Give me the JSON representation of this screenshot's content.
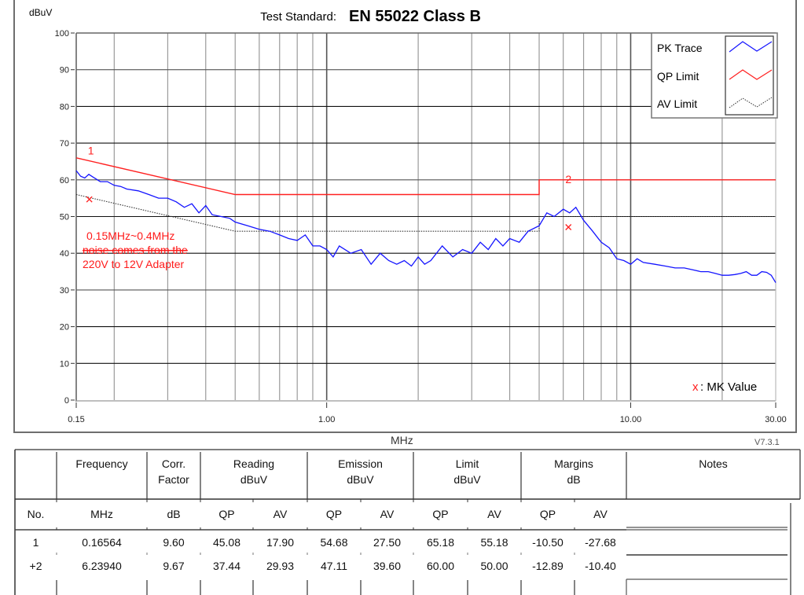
{
  "header": {
    "y_unit": "dBuV",
    "title_prefix": "Test Standard:",
    "title_standard": "EN 55022 Class B"
  },
  "legend": {
    "items": [
      {
        "label": "PK Trace",
        "color": "#1414ff",
        "style": "solid"
      },
      {
        "label": "QP Limit",
        "color": "#ff2020",
        "style": "solid"
      },
      {
        "label": "AV Limit",
        "color": "#333333",
        "style": "dotted"
      }
    ],
    "marker_note_symbol": "x",
    "marker_note_text": ": MK Value"
  },
  "annotation": {
    "lines": [
      "0.15MHz~0.4MHz",
      "noise comes from the",
      "220V to 12V Adapter"
    ],
    "color": "#ff1a1a"
  },
  "footer": {
    "x_unit": "MHz",
    "version": "V7.3.1"
  },
  "chart_data": {
    "type": "line",
    "title": "Test Standard: EN 55022 Class B",
    "xlabel": "MHz",
    "ylabel": "dBuV",
    "xscale": "log",
    "xlim": [
      0.15,
      30
    ],
    "ylim": [
      0,
      100
    ],
    "x_ticks": [
      0.15,
      1.0,
      10.0,
      30.0
    ],
    "x_tick_labels": [
      "0.15",
      "1.00",
      "10.00",
      "30.00"
    ],
    "y_ticks": [
      0,
      10,
      20,
      30,
      40,
      50,
      60,
      70,
      80,
      90,
      100
    ],
    "grid": true,
    "legend_position": "top-right",
    "series": [
      {
        "name": "PK Trace",
        "color": "#1414ff",
        "x": [
          0.15,
          0.155,
          0.16,
          0.165,
          0.17,
          0.18,
          0.19,
          0.2,
          0.21,
          0.22,
          0.24,
          0.26,
          0.28,
          0.3,
          0.32,
          0.34,
          0.36,
          0.38,
          0.4,
          0.42,
          0.45,
          0.48,
          0.5,
          0.55,
          0.6,
          0.65,
          0.7,
          0.75,
          0.8,
          0.85,
          0.9,
          0.95,
          1.0,
          1.05,
          1.1,
          1.2,
          1.3,
          1.4,
          1.5,
          1.6,
          1.7,
          1.8,
          1.9,
          2.0,
          2.1,
          2.2,
          2.4,
          2.6,
          2.8,
          3.0,
          3.2,
          3.4,
          3.6,
          3.8,
          4.0,
          4.3,
          4.6,
          5.0,
          5.3,
          5.6,
          6.0,
          6.3,
          6.6,
          7.0,
          7.5,
          8.0,
          8.5,
          9.0,
          9.5,
          10.0,
          10.5,
          11,
          12,
          13,
          14,
          15,
          16,
          17,
          18,
          19,
          20,
          21,
          22,
          23,
          24,
          25,
          26,
          27,
          28,
          29,
          30
        ],
        "values": [
          62.5,
          61,
          60.5,
          61.5,
          60.8,
          59.5,
          59.5,
          58.5,
          58.2,
          57.5,
          57,
          56,
          55,
          55,
          54,
          52.5,
          53.5,
          51,
          53,
          50.5,
          50,
          49.5,
          48.5,
          47.5,
          46.5,
          46,
          45,
          44,
          43.5,
          45,
          42,
          42,
          41,
          39,
          42,
          40,
          41,
          37,
          40,
          38,
          37,
          38,
          36.5,
          39,
          37,
          38,
          42,
          39,
          41,
          40,
          43,
          41,
          44,
          42,
          44,
          43,
          46,
          47.5,
          51,
          50,
          52,
          51,
          52.5,
          49,
          46,
          43,
          41.5,
          38.5,
          38,
          37,
          38.5,
          37.5,
          37,
          36.5,
          36,
          36,
          35.5,
          35,
          35,
          34.5,
          34,
          34,
          34.2,
          34.5,
          35,
          34,
          34,
          35,
          34.8,
          34,
          32
        ]
      },
      {
        "name": "QP Limit",
        "color": "#ff2020",
        "x": [
          0.15,
          0.5,
          0.5,
          5.0,
          5.0,
          30.0
        ],
        "values": [
          66,
          56,
          56,
          56,
          60,
          60
        ]
      },
      {
        "name": "AV Limit",
        "color": "#333333",
        "x": [
          0.15,
          0.5,
          0.5,
          5.0,
          5.0,
          30.0
        ],
        "values": [
          56,
          46,
          46,
          46,
          50,
          50
        ]
      }
    ],
    "markers": [
      {
        "id": "1",
        "freq_mhz": 0.16564,
        "qp_level": 54.68,
        "av_level": 27.5,
        "label_y": 66.5
      },
      {
        "id": "2",
        "freq_mhz": 6.2394,
        "qp_level": 47.11,
        "av_level": 39.6,
        "label_y": 60
      }
    ]
  },
  "table": {
    "group_headers": [
      {
        "label": "",
        "sub": ""
      },
      {
        "label": "Frequency",
        "sub": ""
      },
      {
        "label": "Corr.",
        "sub": "Factor"
      },
      {
        "label": "Reading",
        "sub": "dBuV"
      },
      {
        "label": "Emission",
        "sub": "dBuV"
      },
      {
        "label": "Limit",
        "sub": "dBuV"
      },
      {
        "label": "Margins",
        "sub": "dB"
      },
      {
        "label": "Notes",
        "sub": ""
      }
    ],
    "unit_row": [
      "No.",
      "MHz",
      "dB",
      "QP",
      "AV",
      "QP",
      "AV",
      "QP",
      "AV",
      "QP",
      "AV",
      ""
    ],
    "rows": [
      {
        "no": "1",
        "freq": "0.16564",
        "corr": "9.60",
        "reading_qp": "45.08",
        "reading_av": "17.90",
        "emission_qp": "54.68",
        "emission_av": "27.50",
        "limit_qp": "65.18",
        "limit_av": "55.18",
        "margin_qp": "-10.50",
        "margin_av": "-27.68",
        "notes": ""
      },
      {
        "no": "+2",
        "freq": "6.23940",
        "corr": "9.67",
        "reading_qp": "37.44",
        "reading_av": "29.93",
        "emission_qp": "47.11",
        "emission_av": "39.60",
        "limit_qp": "60.00",
        "limit_av": "50.00",
        "margin_qp": "-12.89",
        "margin_av": "-10.40",
        "notes": ""
      }
    ]
  }
}
